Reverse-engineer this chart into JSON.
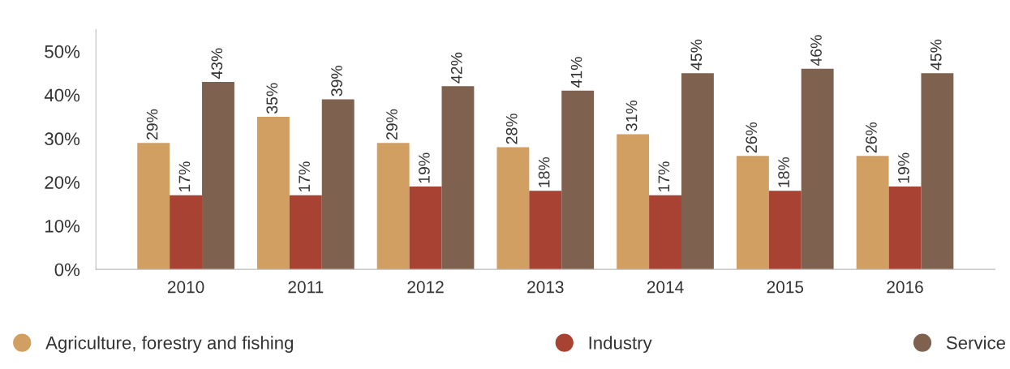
{
  "chart_data": {
    "type": "bar",
    "categories": [
      "2010",
      "2011",
      "2012",
      "2013",
      "2014",
      "2015",
      "2016"
    ],
    "series": [
      {
        "name": "Agriculture, forestry and fishing",
        "color": "#d29f62",
        "values": [
          29,
          35,
          29,
          28,
          31,
          26,
          26
        ],
        "value_labels": [
          "29%",
          "35%",
          "29%",
          "28%",
          "31%",
          "26%",
          "26%"
        ]
      },
      {
        "name": "Industry",
        "color": "#a84232",
        "values": [
          17,
          17,
          19,
          18,
          17,
          18,
          19
        ],
        "value_labels": [
          "17%",
          "17%",
          "19%",
          "18%",
          "17%",
          "18%",
          "19%"
        ]
      },
      {
        "name": "Service",
        "color": "#7f6150",
        "values": [
          43,
          39,
          42,
          41,
          45,
          46,
          45
        ],
        "value_labels": [
          "43%",
          "39%",
          "42%",
          "41%",
          "45%",
          "46%",
          "45%"
        ]
      }
    ],
    "ylim": [
      0,
      55
    ],
    "yticks": [
      {
        "value": 0,
        "label": "0%"
      },
      {
        "value": 10,
        "label": "10%"
      },
      {
        "value": 20,
        "label": "20%"
      },
      {
        "value": 30,
        "label": "30%"
      },
      {
        "value": 40,
        "label": "40%"
      },
      {
        "value": 50,
        "label": "50%"
      }
    ],
    "grid": false,
    "legend": "bottom"
  }
}
